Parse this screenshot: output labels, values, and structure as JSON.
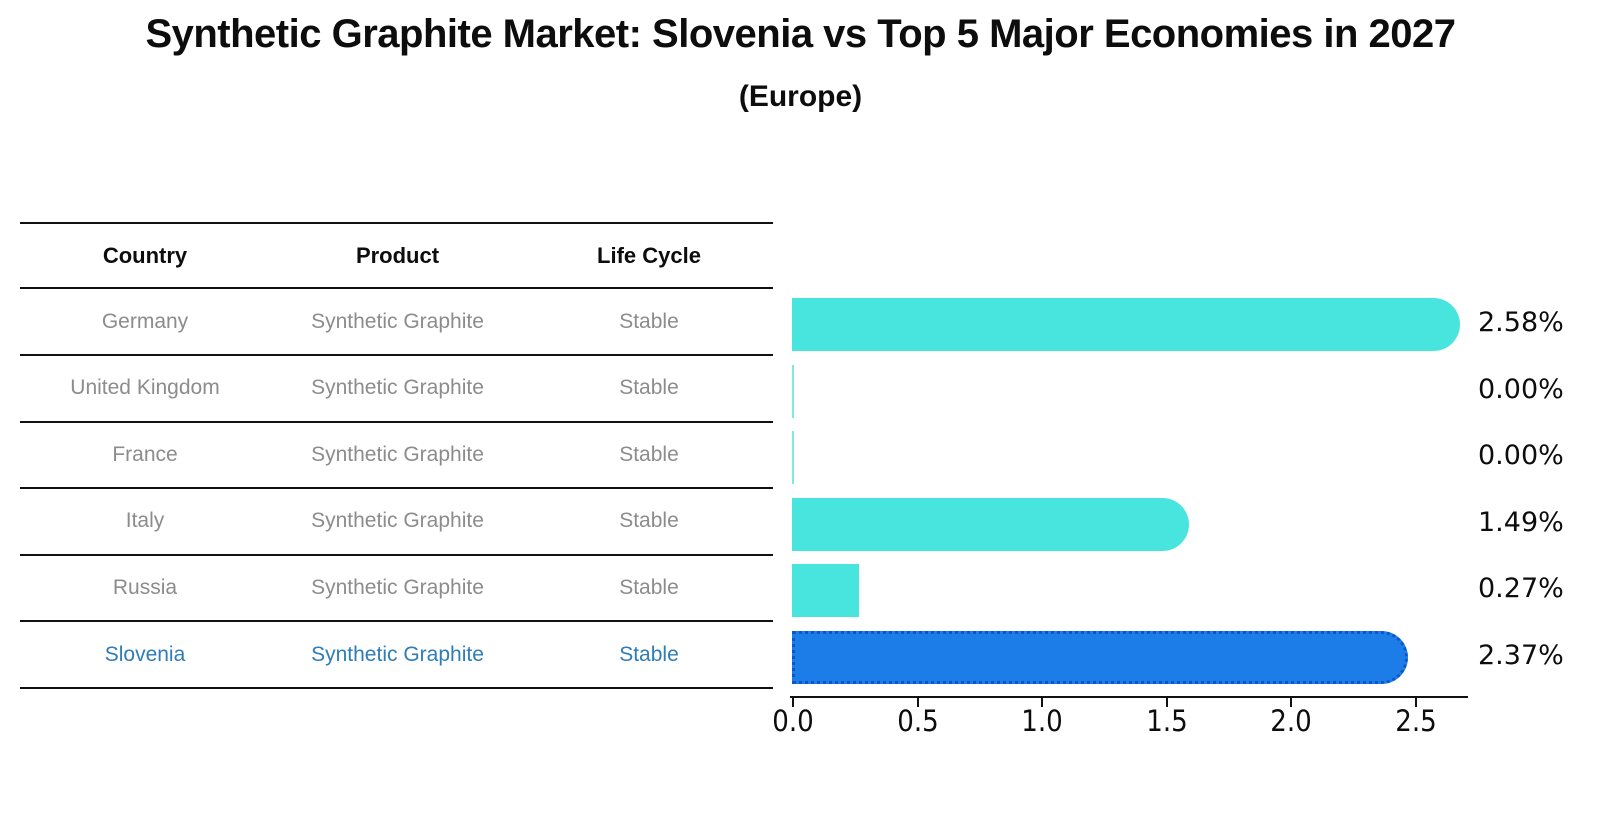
{
  "header": {
    "title": "Synthetic Graphite Market: Slovenia vs Top 5 Major Economies in 2027",
    "subtitle": "(Europe)"
  },
  "table": {
    "headers": [
      "Country",
      "Product",
      "Life Cycle"
    ],
    "rows": [
      {
        "country": "Germany",
        "product": "Synthetic Graphite",
        "life_cycle": "Stable",
        "highlighted": false
      },
      {
        "country": "United Kingdom",
        "product": "Synthetic Graphite",
        "life_cycle": "Stable",
        "highlighted": false
      },
      {
        "country": "France",
        "product": "Synthetic Graphite",
        "life_cycle": "Stable",
        "highlighted": false
      },
      {
        "country": "Italy",
        "product": "Synthetic Graphite",
        "life_cycle": "Stable",
        "highlighted": false
      },
      {
        "country": "Russia",
        "product": "Synthetic Graphite",
        "life_cycle": "Stable",
        "highlighted": false
      },
      {
        "country": "Slovenia",
        "product": "Synthetic Graphite",
        "life_cycle": "Stable",
        "highlighted": true
      }
    ]
  },
  "chart_data": {
    "type": "bar",
    "orientation": "horizontal",
    "title": "Synthetic Graphite Market: Slovenia vs Top 5 Major Economies in 2027 (Europe)",
    "categories": [
      "Germany",
      "United Kingdom",
      "France",
      "Italy",
      "Russia",
      "Slovenia"
    ],
    "values": [
      2.58,
      0.0,
      0.0,
      1.49,
      0.27,
      2.37
    ],
    "value_labels": [
      "2.58%",
      "0.00%",
      "0.00%",
      "1.49%",
      "0.27%",
      "2.37%"
    ],
    "xlabel": "",
    "ylabel": "",
    "xlim": [
      0,
      2.7
    ],
    "xticks": [
      "0.0",
      "0.5",
      "1.0",
      "1.5",
      "2.0",
      "2.5"
    ],
    "grid": false,
    "legend": false,
    "highlight_index": 5,
    "bar_color": "#48e5df",
    "zero_bar_color": "#7fe8e2",
    "highlight_color": "#1c7ce8",
    "highlight_border_color": "#0a58c8"
  },
  "colors": {
    "text_dark": "#0d0d0d",
    "text_muted": "#8c8c8c",
    "highlight_text": "#2e7cb8",
    "line": "#111111"
  }
}
